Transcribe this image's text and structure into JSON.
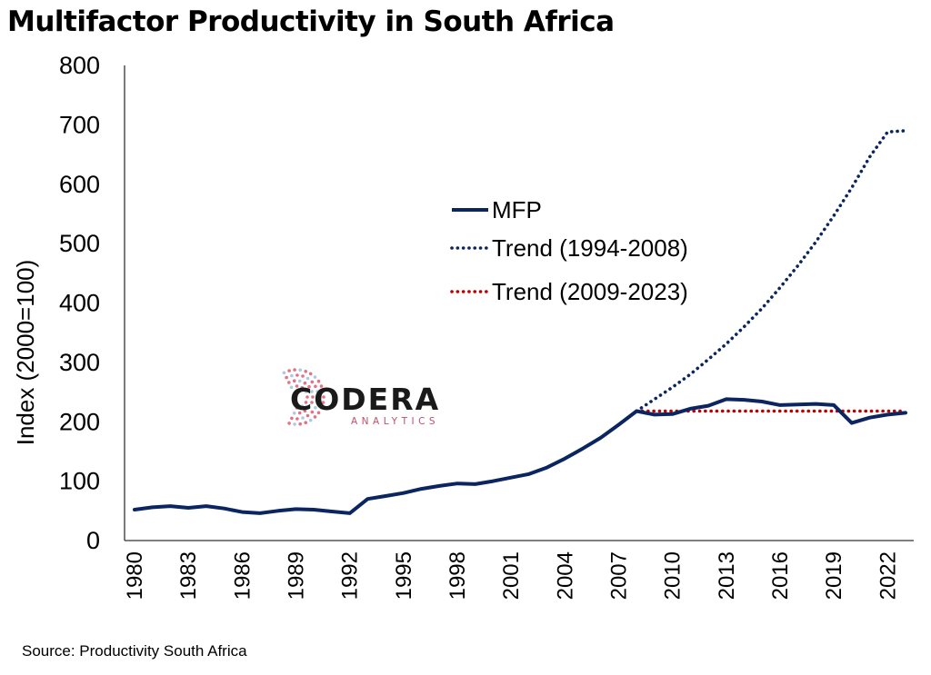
{
  "chart_data": {
    "type": "line",
    "title": "Multifactor Productivity in South Africa",
    "ylabel": "Index (2000=100)",
    "xlabel": "",
    "source": "Source: Productivity South Africa",
    "ylim": [
      0,
      800
    ],
    "yticks": [
      0,
      100,
      200,
      300,
      400,
      500,
      600,
      700,
      800
    ],
    "xlim": [
      1980,
      2023
    ],
    "xticks": [
      "1980",
      "1983",
      "1986",
      "1989",
      "1992",
      "1995",
      "1998",
      "2001",
      "2004",
      "2007",
      "2010",
      "2013",
      "2016",
      "2019",
      "2022"
    ],
    "grid": false,
    "legend_position": "center",
    "series": [
      {
        "name": "MFP",
        "style": "solid",
        "color": "#0b2560",
        "x": [
          1980,
          1981,
          1982,
          1983,
          1984,
          1985,
          1986,
          1987,
          1988,
          1989,
          1990,
          1991,
          1992,
          1993,
          1994,
          1995,
          1996,
          1997,
          1998,
          1999,
          2000,
          2001,
          2002,
          2003,
          2004,
          2005,
          2006,
          2007,
          2008,
          2009,
          2010,
          2011,
          2012,
          2013,
          2014,
          2015,
          2016,
          2017,
          2018,
          2019,
          2020,
          2021,
          2022,
          2023
        ],
        "values": [
          52,
          56,
          58,
          55,
          58,
          54,
          48,
          46,
          50,
          53,
          52,
          49,
          46,
          70,
          75,
          80,
          87,
          92,
          96,
          95,
          100,
          106,
          112,
          123,
          138,
          155,
          173,
          195,
          218,
          212,
          213,
          222,
          227,
          238,
          237,
          234,
          228,
          229,
          230,
          228,
          198,
          207,
          212,
          215
        ]
      },
      {
        "name": "Trend (1994-2008)",
        "style": "dotted",
        "color": "#0b2560",
        "x": [
          2008,
          2009,
          2010,
          2011,
          2012,
          2013,
          2014,
          2015,
          2016,
          2017,
          2018,
          2019,
          2020,
          2021,
          2022,
          2023
        ],
        "values": [
          218,
          238,
          258,
          280,
          305,
          331,
          360,
          391,
          426,
          463,
          503,
          547,
          594,
          646,
          688,
          690
        ]
      },
      {
        "name": "Trend (2009-2023)",
        "style": "dotted",
        "color": "#c00000",
        "x": [
          2008,
          2009,
          2010,
          2011,
          2012,
          2013,
          2014,
          2015,
          2016,
          2017,
          2018,
          2019,
          2020,
          2021,
          2022,
          2023
        ],
        "values": [
          218,
          218,
          218,
          218,
          218,
          218,
          218,
          218,
          218,
          218,
          218,
          218,
          218,
          218,
          218,
          218
        ]
      }
    ]
  },
  "logo": {
    "name": "CODERA",
    "tagline": "ANALYTICS",
    "colors": {
      "text": "#1a1a1a",
      "tagline": "#c0506a",
      "mark_red": "#d9435a",
      "mark_blue": "#8fb8d9"
    }
  }
}
